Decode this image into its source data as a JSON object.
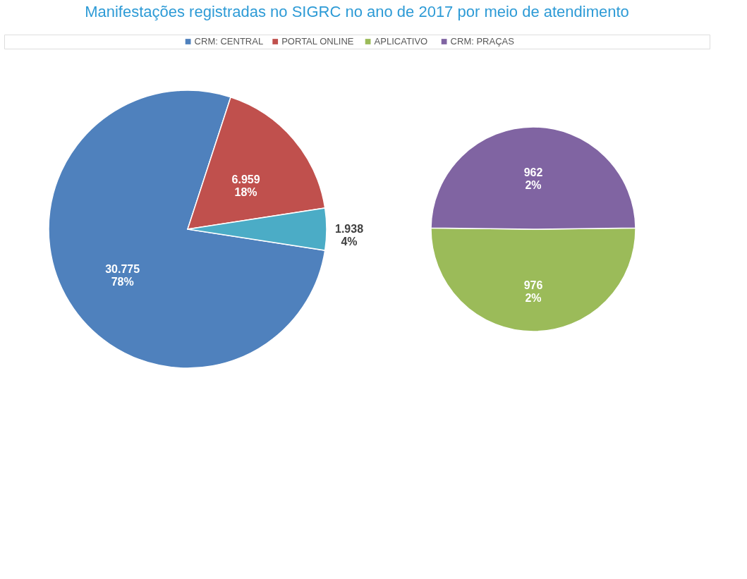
{
  "chart_data": [
    {
      "type": "pie",
      "title": "Manifestações registradas no SIGRC no ano de 2017 por meio de atendimento",
      "legend": "top",
      "categories": [
        "CRM: CENTRAL",
        "PORTAL ONLINE",
        null
      ],
      "values": [
        30775,
        6959,
        1938
      ],
      "colors": [
        "#4f81bd",
        "#c0504d",
        "#4bacc6"
      ],
      "value_labels": [
        "30.775\n78%",
        "6.959\n18%",
        "1.938\n4%"
      ]
    },
    {
      "type": "pie",
      "legend": "top",
      "categories": [
        "APLICATIVO",
        "CRM: PRAÇAS"
      ],
      "values": [
        976,
        962
      ],
      "colors": [
        "#9bbb59",
        "#8064a2"
      ],
      "value_labels": [
        "976\n2%",
        "962\n2%"
      ]
    }
  ]
}
